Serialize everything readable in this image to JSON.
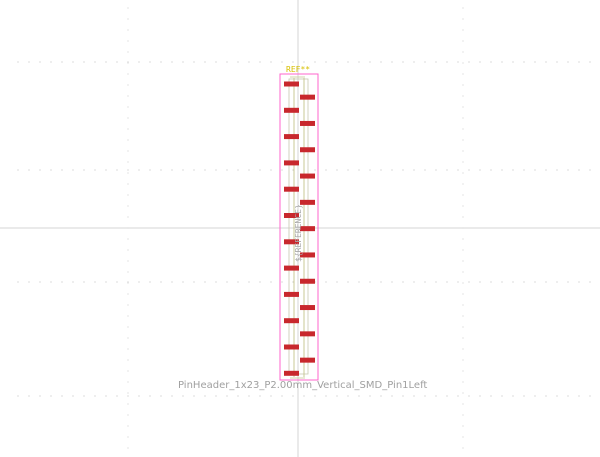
{
  "footprint": {
    "name": "PinHeader_1x23_P2.00mm_Vertical_SMD_Pin1Left",
    "reference": "REF**",
    "fab_reference": "${REFERENCE}",
    "pin_count": 23
  },
  "colors": {
    "background": "#ffffff",
    "crosshair": "#d0d0d0",
    "grid_dot": "#b8b8b8",
    "pad": "#c8282d",
    "courtyard": "#ff66cc",
    "silkscreen": "#c8c896",
    "fab_outline": "#b0b0b0",
    "reference_text": "#d8c000",
    "value_text": "#a0a0a0"
  },
  "icons": {
    "crosshair": "crosshair-icon"
  }
}
